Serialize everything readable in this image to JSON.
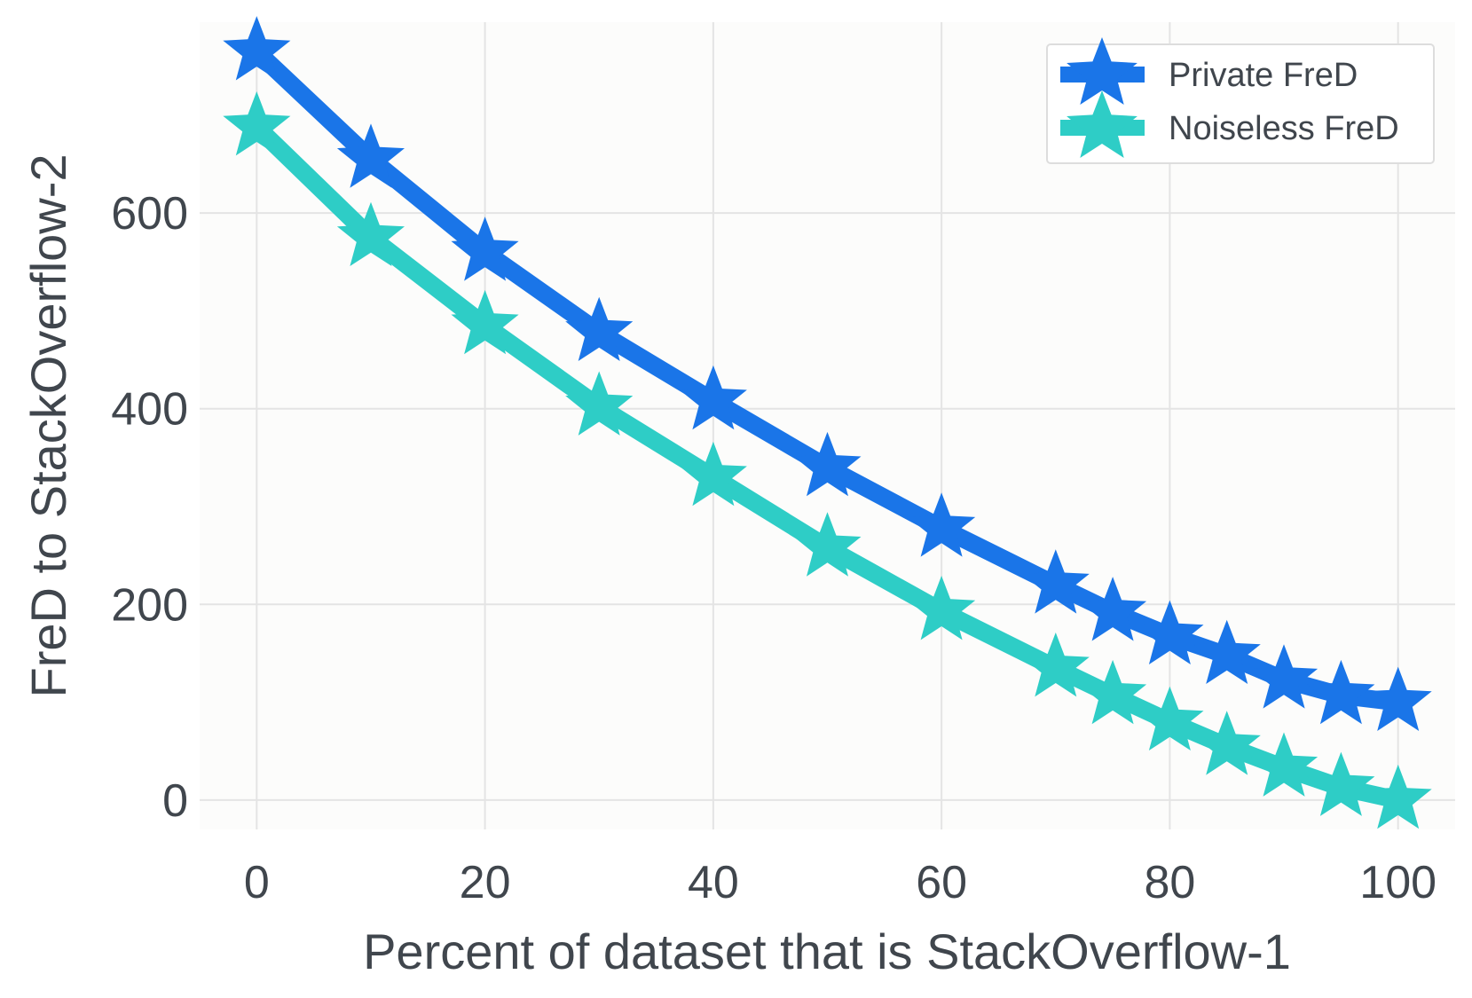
{
  "chart_data": {
    "type": "line",
    "xlabel": "Percent of dataset that is StackOverflow-1",
    "ylabel": "FreD to StackOverflow-2",
    "xlim": [
      -5,
      105
    ],
    "ylim": [
      -30,
      795
    ],
    "grid": true,
    "legend_position": "top-right",
    "x_ticks": [
      0,
      20,
      40,
      60,
      80,
      100
    ],
    "y_ticks": [
      0,
      200,
      400,
      600
    ],
    "x": [
      0,
      10,
      20,
      30,
      40,
      50,
      60,
      70,
      75,
      80,
      85,
      90,
      95,
      100
    ],
    "series": [
      {
        "name": "Private FreD",
        "color": "#1a75e8",
        "marker": "star",
        "values": [
          765,
          655,
          560,
          478,
          408,
          340,
          278,
          220,
          192,
          168,
          148,
          123,
          107,
          100
        ]
      },
      {
        "name": "Noiseless FreD",
        "color": "#2ecdc6",
        "marker": "star",
        "values": [
          688,
          575,
          485,
          402,
          330,
          258,
          193,
          135,
          107,
          80,
          55,
          33,
          13,
          0
        ]
      }
    ]
  }
}
